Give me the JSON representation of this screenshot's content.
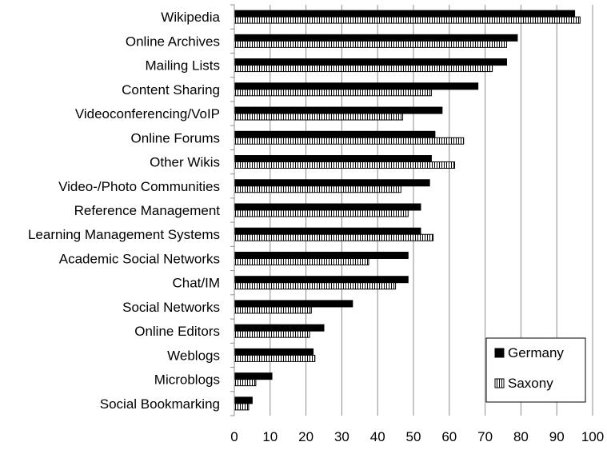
{
  "chart_data": {
    "type": "bar",
    "orientation": "horizontal",
    "categories": [
      "Wikipedia",
      "Online Archives",
      "Mailing Lists",
      "Content Sharing",
      "Videoconferencing/VoIP",
      "Online Forums",
      "Other Wikis",
      "Video-/Photo Communities",
      "Reference Management",
      "Learning Management Systems",
      "Academic Social Networks",
      "Chat/IM",
      "Social Networks",
      "Online Editors",
      "Weblogs",
      "Microblogs",
      "Social Bookmarking"
    ],
    "series": [
      {
        "name": "Germany",
        "color": "#000000",
        "pattern": "solid",
        "values": [
          95,
          79,
          76,
          68,
          58,
          56,
          55,
          54.5,
          52,
          52,
          48.5,
          48.5,
          33,
          25,
          22,
          10.5,
          5
        ]
      },
      {
        "name": "Saxony",
        "color": "#ffffff",
        "pattern": "vertical-stripes",
        "values": [
          96.5,
          76,
          72,
          55,
          47,
          64,
          61.5,
          46.5,
          48.5,
          55.5,
          37.5,
          45,
          21.5,
          21,
          22.5,
          6,
          4
        ]
      }
    ],
    "xticks": [
      "0",
      "10",
      "20",
      "30",
      "40",
      "50",
      "60",
      "70",
      "80",
      "90",
      "100"
    ],
    "xlim": [
      0,
      100
    ],
    "grid": "vertical",
    "legend_position": "bottom-right",
    "title": "",
    "xlabel": "",
    "ylabel": ""
  }
}
